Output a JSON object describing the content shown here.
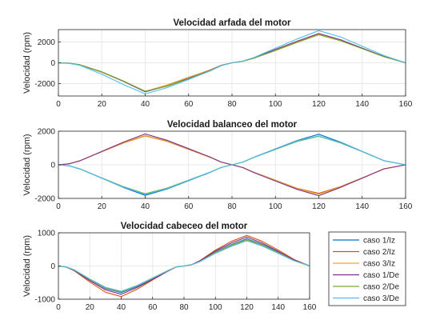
{
  "chart_data": [
    {
      "type": "line",
      "title": "Velocidad arfada del motor",
      "xlabel": "",
      "ylabel": "Velocidad (rpm)",
      "xlim": [
        0,
        160
      ],
      "ylim": [
        -3200,
        3200
      ],
      "xticks": [
        0,
        20,
        40,
        60,
        80,
        100,
        120,
        140,
        160
      ],
      "yticks": [
        -2000,
        0,
        2000
      ],
      "grid": true,
      "series": [
        {
          "name": "caso 1/Iz",
          "color": "#0072BD",
          "x": [
            0,
            5,
            10,
            20,
            30,
            40,
            50,
            60,
            70,
            75,
            80,
            85,
            90,
            100,
            110,
            120,
            130,
            140,
            150,
            160
          ],
          "y": [
            0,
            -50,
            -200,
            -900,
            -1800,
            -2800,
            -2200,
            -1450,
            -700,
            -250,
            0,
            150,
            450,
            1250,
            2050,
            2800,
            2200,
            1400,
            600,
            0
          ]
        },
        {
          "name": "caso 2/Iz",
          "color": "#D95319",
          "x": [
            0,
            5,
            10,
            20,
            30,
            40,
            50,
            60,
            70,
            75,
            80,
            85,
            90,
            100,
            110,
            120,
            130,
            140,
            150,
            160
          ],
          "y": [
            0,
            -50,
            -200,
            -900,
            -1800,
            -2760,
            -2150,
            -1400,
            -680,
            -240,
            0,
            150,
            440,
            1230,
            2020,
            2750,
            2150,
            1380,
            590,
            0
          ]
        },
        {
          "name": "caso 3/Iz",
          "color": "#EDB120",
          "x": [
            0,
            5,
            10,
            20,
            30,
            40,
            50,
            60,
            70,
            75,
            80,
            85,
            90,
            100,
            110,
            120,
            130,
            140,
            150,
            160
          ],
          "y": [
            0,
            -50,
            -200,
            -900,
            -1800,
            -2780,
            -2170,
            -1420,
            -690,
            -245,
            0,
            150,
            445,
            1240,
            2030,
            2770,
            2170,
            1390,
            595,
            0
          ]
        },
        {
          "name": "caso 1/De",
          "color": "#7E2F8E",
          "x": [
            0,
            5,
            10,
            20,
            30,
            40,
            50,
            60,
            70,
            75,
            80,
            85,
            90,
            100,
            110,
            120,
            130,
            140,
            150,
            160
          ],
          "y": [
            0,
            -50,
            -200,
            -880,
            -1780,
            -2780,
            -2250,
            -1500,
            -730,
            -260,
            0,
            160,
            470,
            1290,
            2080,
            2820,
            2230,
            1420,
            610,
            0
          ]
        },
        {
          "name": "caso 2/De",
          "color": "#77AC30",
          "x": [
            0,
            5,
            10,
            20,
            30,
            40,
            50,
            60,
            70,
            75,
            80,
            85,
            90,
            100,
            110,
            120,
            130,
            140,
            150,
            160
          ],
          "y": [
            0,
            -50,
            -190,
            -860,
            -1750,
            -2740,
            -2260,
            -1550,
            -760,
            -280,
            0,
            150,
            430,
            1180,
            1960,
            2700,
            2120,
            1360,
            580,
            0
          ]
        },
        {
          "name": "caso 3/De",
          "color": "#4DBEEE",
          "x": [
            0,
            5,
            10,
            20,
            30,
            40,
            50,
            60,
            70,
            75,
            80,
            85,
            90,
            100,
            110,
            120,
            130,
            140,
            150,
            160
          ],
          "y": [
            0,
            -60,
            -250,
            -1100,
            -2100,
            -3000,
            -2400,
            -1600,
            -780,
            -280,
            0,
            170,
            500,
            1400,
            2300,
            3100,
            2500,
            1600,
            700,
            0
          ]
        }
      ]
    },
    {
      "type": "line",
      "title": "Velocidad balanceo del motor",
      "xlabel": "",
      "ylabel": "Velocidad (rpm)",
      "xlim": [
        0,
        160
      ],
      "ylim": [
        -2000,
        2000
      ],
      "xticks": [
        0,
        20,
        40,
        60,
        80,
        100,
        120,
        140,
        160
      ],
      "yticks": [
        -2000,
        0,
        2000
      ],
      "grid": true,
      "series": [
        {
          "name": "caso 1/Iz",
          "color": "#0072BD",
          "x": [
            0,
            5,
            10,
            20,
            30,
            40,
            50,
            60,
            70,
            75,
            80,
            85,
            90,
            100,
            110,
            120,
            130,
            140,
            150,
            160
          ],
          "y": [
            0,
            -60,
            -250,
            -800,
            -1350,
            -1820,
            -1450,
            -950,
            -450,
            -160,
            0,
            160,
            450,
            950,
            1450,
            1820,
            1350,
            800,
            250,
            0
          ]
        },
        {
          "name": "caso 2/Iz",
          "color": "#D95319",
          "x": [
            0,
            5,
            10,
            20,
            30,
            40,
            50,
            60,
            70,
            75,
            80,
            85,
            90,
            100,
            110,
            120,
            130,
            140,
            150,
            160
          ],
          "y": [
            0,
            60,
            250,
            780,
            1300,
            1720,
            1400,
            920,
            440,
            160,
            0,
            -160,
            -440,
            -920,
            -1400,
            -1700,
            -1300,
            -780,
            -250,
            0
          ]
        },
        {
          "name": "caso 3/Iz",
          "color": "#EDB120",
          "x": [
            0,
            5,
            10,
            20,
            30,
            40,
            50,
            60,
            70,
            75,
            80,
            85,
            90,
            100,
            110,
            120,
            130,
            140,
            150,
            160
          ],
          "y": [
            0,
            60,
            250,
            790,
            1320,
            1750,
            1420,
            930,
            445,
            160,
            0,
            -160,
            -445,
            -930,
            -1420,
            -1750,
            -1320,
            -790,
            -250,
            0
          ]
        },
        {
          "name": "caso 1/De",
          "color": "#7E2F8E",
          "x": [
            0,
            5,
            10,
            20,
            30,
            40,
            50,
            60,
            70,
            75,
            80,
            85,
            90,
            100,
            110,
            120,
            130,
            140,
            150,
            160
          ],
          "y": [
            0,
            60,
            240,
            800,
            1350,
            1840,
            1460,
            960,
            455,
            165,
            0,
            -165,
            -455,
            -960,
            -1460,
            -1840,
            -1350,
            -800,
            -240,
            0
          ]
        },
        {
          "name": "caso 2/De",
          "color": "#77AC30",
          "x": [
            0,
            5,
            10,
            20,
            30,
            40,
            50,
            60,
            70,
            75,
            80,
            85,
            90,
            100,
            110,
            120,
            130,
            140,
            150,
            160
          ],
          "y": [
            0,
            -60,
            -240,
            -780,
            -1300,
            -1720,
            -1390,
            -910,
            -430,
            -155,
            0,
            155,
            430,
            910,
            1390,
            1700,
            1300,
            780,
            240,
            0
          ]
        },
        {
          "name": "caso 3/De",
          "color": "#4DBEEE",
          "x": [
            0,
            5,
            10,
            20,
            30,
            40,
            50,
            60,
            70,
            75,
            80,
            85,
            90,
            100,
            110,
            120,
            130,
            140,
            150,
            160
          ],
          "y": [
            0,
            -60,
            -245,
            -790,
            -1320,
            -1760,
            -1420,
            -930,
            -440,
            -160,
            0,
            160,
            440,
            930,
            1420,
            1720,
            1320,
            790,
            245,
            0
          ]
        }
      ]
    },
    {
      "type": "line",
      "title": "Velocidad cabeceo del motor",
      "xlabel": "",
      "ylabel": "Velocidad (rpm)",
      "xlim": [
        0,
        160
      ],
      "ylim": [
        -1000,
        1000
      ],
      "xticks": [
        0,
        20,
        40,
        60,
        80,
        100,
        120,
        140,
        160
      ],
      "yticks": [
        -1000,
        0,
        1000
      ],
      "grid": true,
      "legend": "right-outside",
      "series": [
        {
          "name": "caso 1/Iz",
          "color": "#0072BD",
          "x": [
            0,
            5,
            10,
            20,
            30,
            40,
            50,
            60,
            70,
            75,
            80,
            85,
            90,
            100,
            110,
            120,
            130,
            140,
            150,
            160
          ],
          "y": [
            0,
            -30,
            -120,
            -420,
            -680,
            -800,
            -620,
            -380,
            -140,
            -30,
            0,
            40,
            140,
            420,
            640,
            820,
            650,
            420,
            180,
            0
          ]
        },
        {
          "name": "caso 2/Iz",
          "color": "#D95319",
          "x": [
            0,
            5,
            10,
            20,
            30,
            40,
            50,
            60,
            70,
            75,
            80,
            85,
            90,
            100,
            110,
            120,
            130,
            140,
            150,
            160
          ],
          "y": [
            0,
            -35,
            -140,
            -480,
            -790,
            -920,
            -700,
            -420,
            -150,
            -30,
            0,
            40,
            160,
            480,
            740,
            920,
            740,
            480,
            200,
            0
          ]
        },
        {
          "name": "caso 3/Iz",
          "color": "#EDB120",
          "x": [
            0,
            5,
            10,
            20,
            30,
            40,
            50,
            60,
            70,
            75,
            80,
            85,
            90,
            100,
            110,
            120,
            130,
            140,
            150,
            160
          ],
          "y": [
            0,
            -30,
            -120,
            -410,
            -660,
            -780,
            -600,
            -370,
            -135,
            -30,
            0,
            40,
            135,
            400,
            620,
            790,
            630,
            400,
            170,
            0
          ]
        },
        {
          "name": "caso 1/De",
          "color": "#7E2F8E",
          "x": [
            0,
            5,
            10,
            20,
            30,
            40,
            50,
            60,
            70,
            75,
            80,
            85,
            90,
            100,
            110,
            120,
            130,
            140,
            150,
            160
          ],
          "y": [
            0,
            -32,
            -130,
            -440,
            -720,
            -850,
            -650,
            -400,
            -145,
            -30,
            0,
            40,
            150,
            450,
            690,
            870,
            690,
            440,
            185,
            0
          ]
        },
        {
          "name": "caso 2/De",
          "color": "#77AC30",
          "x": [
            0,
            5,
            10,
            20,
            30,
            40,
            50,
            60,
            70,
            75,
            80,
            85,
            90,
            100,
            110,
            120,
            130,
            140,
            150,
            160
          ],
          "y": [
            0,
            -30,
            -115,
            -400,
            -650,
            -770,
            -590,
            -360,
            -130,
            -28,
            0,
            38,
            130,
            390,
            610,
            780,
            620,
            390,
            165,
            0
          ]
        },
        {
          "name": "caso 3/De",
          "color": "#4DBEEE",
          "x": [
            0,
            5,
            10,
            20,
            30,
            40,
            50,
            60,
            70,
            75,
            80,
            85,
            90,
            100,
            110,
            120,
            130,
            140,
            150,
            160
          ],
          "y": [
            0,
            -28,
            -110,
            -390,
            -640,
            -760,
            -590,
            -365,
            -135,
            -30,
            0,
            38,
            130,
            380,
            590,
            760,
            600,
            380,
            160,
            0
          ]
        }
      ]
    }
  ]
}
